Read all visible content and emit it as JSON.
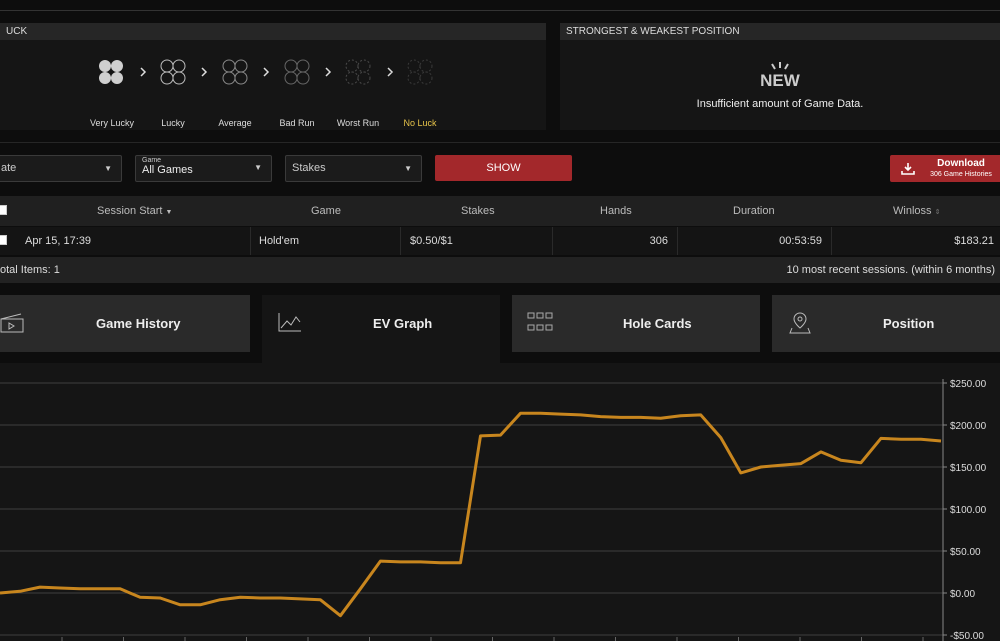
{
  "luck_panel": {
    "title": "UCK",
    "levels": [
      "Very Lucky",
      "Lucky",
      "Average",
      "Bad Run",
      "Worst Run",
      "No Luck"
    ]
  },
  "position_panel": {
    "title": "STRONGEST & WEAKEST POSITION",
    "badge": "NEW",
    "message": "Insufficient amount of Game Data."
  },
  "filters": {
    "date": "ate",
    "game_label": "Game",
    "game": "All Games",
    "stakes": "Stakes",
    "show": "SHOW",
    "download": "Download",
    "download_sub": "306 Game Histories"
  },
  "table": {
    "columns": [
      "Session Start",
      "Game",
      "Stakes",
      "Hands",
      "Duration",
      "Winloss"
    ],
    "rows": [
      [
        "Apr 15, 17:39",
        "Hold'em",
        "$0.50/$1",
        "306",
        "00:53:59",
        "$183.21"
      ]
    ],
    "total": "otal Items: 1",
    "note": "10 most recent sessions. (within 6 months)"
  },
  "tabs": [
    "Game History",
    "EV Graph",
    "Hole Cards",
    "Position"
  ],
  "chart_data": {
    "type": "line",
    "series": [
      {
        "color": "#c8861e",
        "values": [
          0,
          2,
          7,
          6,
          5,
          5,
          5,
          -5,
          -6,
          -14,
          -14,
          -8,
          -5,
          -6,
          -6,
          -7,
          -8,
          -27,
          5,
          38,
          37,
          37,
          36,
          36,
          187,
          188,
          214,
          214,
          213,
          212,
          210,
          209,
          209,
          208,
          211,
          212,
          185,
          143,
          150,
          152,
          154,
          168,
          158,
          155,
          184,
          183,
          183,
          181
        ]
      }
    ],
    "ylim": [
      -50,
      250
    ],
    "yticks": [
      {
        "value": 250,
        "label": "$250.00"
      },
      {
        "value": 200,
        "label": "$200.00"
      },
      {
        "value": 150,
        "label": "$150.00"
      },
      {
        "value": 100,
        "label": "$100.00"
      },
      {
        "value": 50,
        "label": "$50.00"
      },
      {
        "value": 0,
        "label": "$0.00"
      },
      {
        "value": -50,
        "label": "-$50.00"
      }
    ],
    "grid": true
  }
}
